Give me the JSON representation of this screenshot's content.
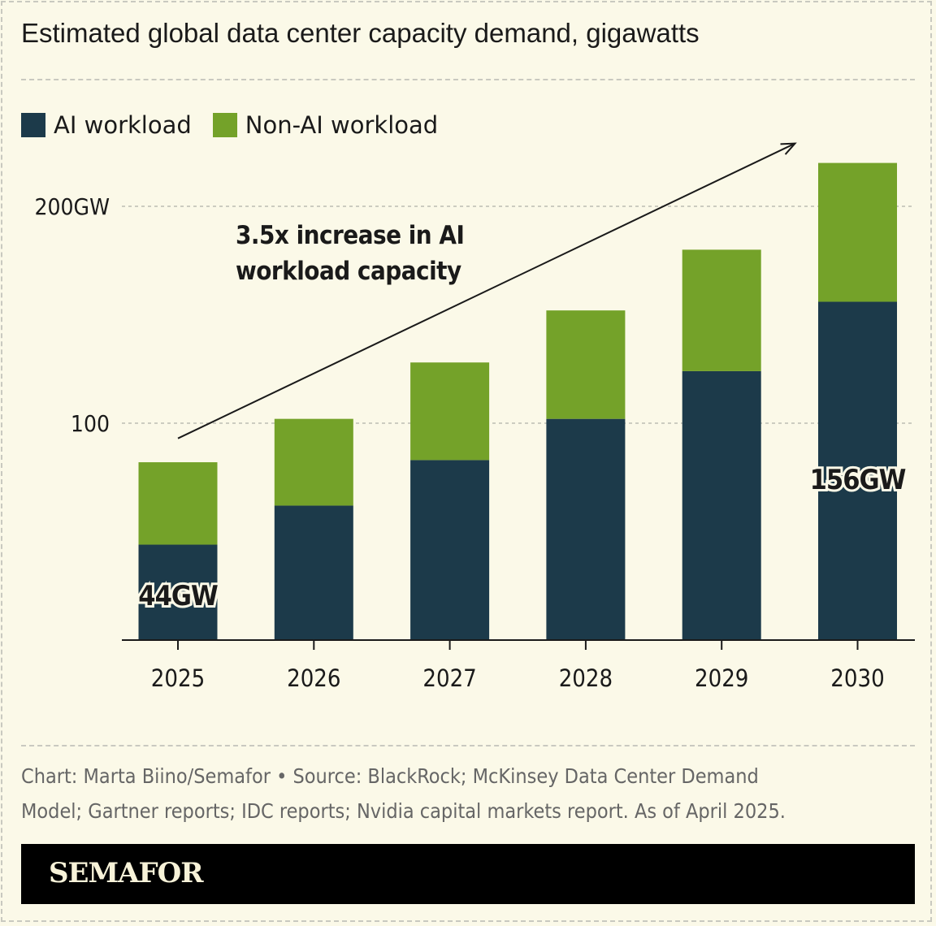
{
  "title": "Estimated global data center capacity demand, gigawatts",
  "legend": [
    {
      "label": "AI workload",
      "color": "#1c3a4a"
    },
    {
      "label": "Non-AI workload",
      "color": "#74a229"
    }
  ],
  "footer": {
    "line1": "Chart: Marta Biino/Semafor • Source: BlackRock; McKinsey Data Center Demand",
    "line2": "Model; Gartner reports; IDC reports; Nvidia capital markets report. As of April 2025."
  },
  "brand": "SEMAFOR",
  "chart_data": {
    "type": "bar",
    "stacked": true,
    "title": "Estimated global data center capacity demand, gigawatts",
    "categories": [
      "2025",
      "2026",
      "2027",
      "2028",
      "2029",
      "2030"
    ],
    "series": [
      {
        "name": "AI workload",
        "values": [
          44,
          62,
          83,
          102,
          124,
          156
        ],
        "color": "#1c3a4a"
      },
      {
        "name": "Non-AI workload",
        "values": [
          38,
          40,
          45,
          50,
          56,
          64
        ],
        "color": "#74a229"
      }
    ],
    "ylim": [
      0,
      230
    ],
    "yticks": [
      {
        "value": 100,
        "label": "100"
      },
      {
        "value": 200,
        "label": "200GW"
      }
    ],
    "grid": true,
    "legend_placement": "top-left",
    "data_labels": [
      {
        "category": "2025",
        "text": "44GW"
      },
      {
        "category": "2030",
        "text": "156GW"
      }
    ],
    "annotation": {
      "lines": [
        "3.5x increase in AI",
        "workload capacity"
      ],
      "arrow_from": [
        "2025",
        93
      ],
      "arrow_to": [
        "2030",
        229
      ]
    }
  }
}
